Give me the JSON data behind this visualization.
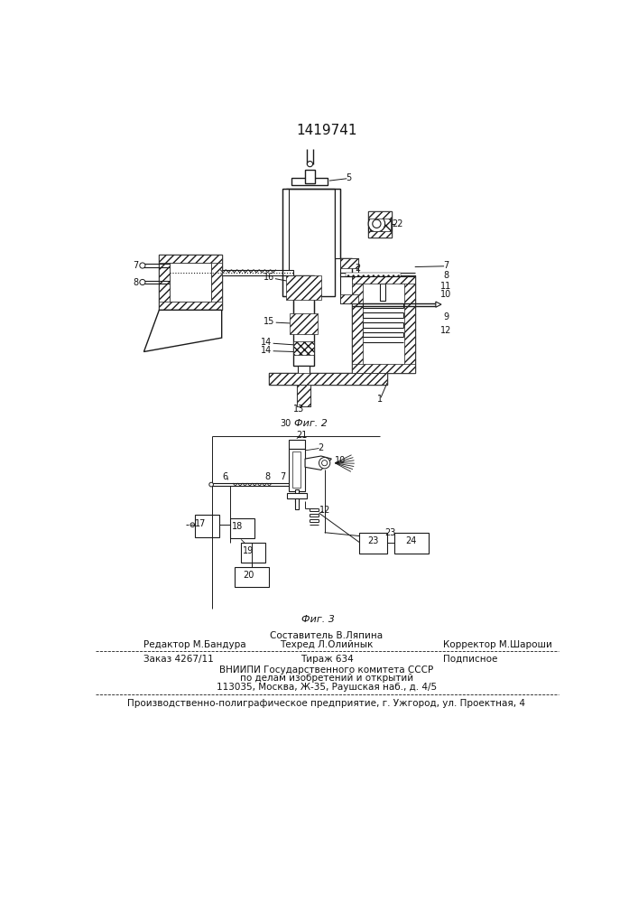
{
  "patent_number": "1419741",
  "fig2_label": "Фиг. 2",
  "fig3_label": "Фиг. 3",
  "fig2_num": "30",
  "footer": {
    "sostavitel": "Составитель В.Ляпина",
    "redaktor": "Редактор М.Бандура",
    "tehred": "Техред Л.Олийнык",
    "korrektor": "Корректор М.Шароши",
    "zakaz": "Заказ 4267/11",
    "tirazh": "Тираж 634",
    "podpisnoe": "Подписное",
    "vniipи": "ВНИИПИ Государственного комитета СССР",
    "po_delam": "по делам изобретений и открытий",
    "address": "113035, Москва, Ж-35, Раушская наб., д. 4/5",
    "proizv": "Производственно-полиграфическое предприятие, г. Ужгород, ул. Проектная, 4"
  },
  "bg_color": "#ffffff",
  "line_color": "#1a1a1a",
  "text_color": "#111111"
}
